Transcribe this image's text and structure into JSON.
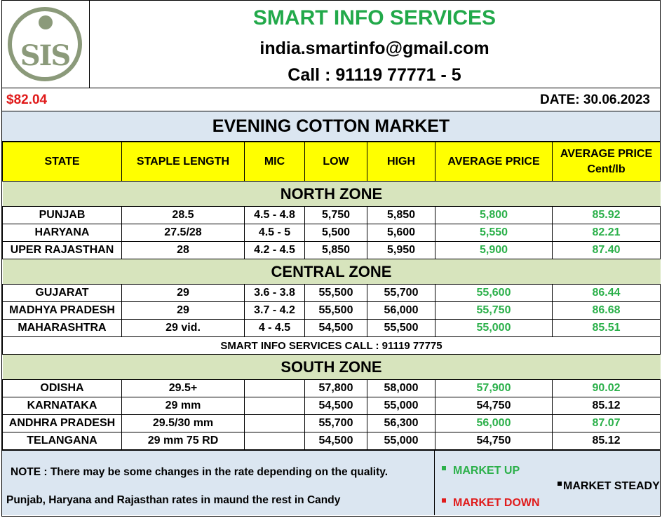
{
  "header": {
    "logo_text": "SIS",
    "title": "SMART INFO SERVICES",
    "email": "india.smartinfo@gmail.com",
    "call": "Call : 91119 77771 - 5"
  },
  "pricebar": {
    "usd": "$82.04",
    "date": "DATE: 30.06.2023"
  },
  "market_title": "EVENING COTTON MARKET",
  "columns": {
    "state": "STATE",
    "staple": "STAPLE LENGTH",
    "mic": "MIC",
    "low": "LOW",
    "high": "HIGH",
    "avg": "AVERAGE PRICE",
    "avg_cent_1": "AVERAGE PRICE",
    "avg_cent_2": "Cent/lb"
  },
  "zones": {
    "north": {
      "name": "NORTH ZONE",
      "rows": [
        {
          "state": "PUNJAB",
          "staple": "28.5",
          "mic": "4.5 - 4.8",
          "low": "5,750",
          "high": "5,850",
          "avg": "5,800",
          "cent": "85.92"
        },
        {
          "state": "HARYANA",
          "staple": "27.5/28",
          "mic": "4.5 - 5",
          "low": "5,500",
          "high": "5,600",
          "avg": "5,550",
          "cent": "82.21"
        },
        {
          "state": "UPER RAJASTHAN",
          "staple": "28",
          "mic": "4.2 - 4.5",
          "low": "5,850",
          "high": "5,950",
          "avg": "5,900",
          "cent": "87.40"
        }
      ]
    },
    "central": {
      "name": "CENTRAL ZONE",
      "rows": [
        {
          "state": "GUJARAT",
          "staple": "29",
          "mic": "3.6 - 3.8",
          "low": "55,500",
          "high": "55,700",
          "avg": "55,600",
          "cent": "86.44"
        },
        {
          "state": "MADHYA PRADESH",
          "staple": "29",
          "mic": "3.7 - 4.2",
          "low": "55,500",
          "high": "56,000",
          "avg": "55,750",
          "cent": "86.68"
        },
        {
          "state": "MAHARASHTRA",
          "staple": "29 vid.",
          "mic": "4 - 4.5",
          "low": "54,500",
          "high": "55,500",
          "avg": "55,000",
          "cent": "85.51"
        }
      ]
    },
    "call_note": "SMART INFO SERVICES CALL : 91119 77775",
    "south": {
      "name": "SOUTH ZONE",
      "rows": [
        {
          "state": "ODISHA",
          "staple": "29.5+",
          "mic": "",
          "low": "57,800",
          "high": "58,000",
          "avg": "57,900",
          "cent": "90.02"
        },
        {
          "state": "KARNATAKA",
          "staple": "29 mm",
          "mic": "",
          "low": "54,500",
          "high": "55,000",
          "avg": "54,750",
          "cent": "85.12"
        },
        {
          "state": "ANDHRA PRADESH",
          "staple": "29.5/30 mm",
          "mic": "",
          "low": "55,700",
          "high": "56,300",
          "avg": "56,000",
          "cent": "87.07"
        },
        {
          "state": "TELANGANA",
          "staple": "29 mm  75 RD",
          "mic": "",
          "low": "54,500",
          "high": "55,000",
          "avg": "54,750",
          "cent": "85.12"
        }
      ]
    }
  },
  "footer": {
    "note1": "NOTE : There may be some changes in the rate depending on the quality.",
    "note2": "Punjab, Haryana and Rajasthan rates in maund the rest in Candy",
    "legend_up": "MARKET UP",
    "legend_steady": "MARKET STEADY",
    "legend_down": "MARKET  DOWN"
  },
  "colors": {
    "up": "#2bb04a",
    "down": "#e01b1b",
    "steady": "#000000",
    "header_fill": "#ffff00",
    "zone_fill": "#d7e4bd",
    "band_fill": "#dbe6f1"
  }
}
